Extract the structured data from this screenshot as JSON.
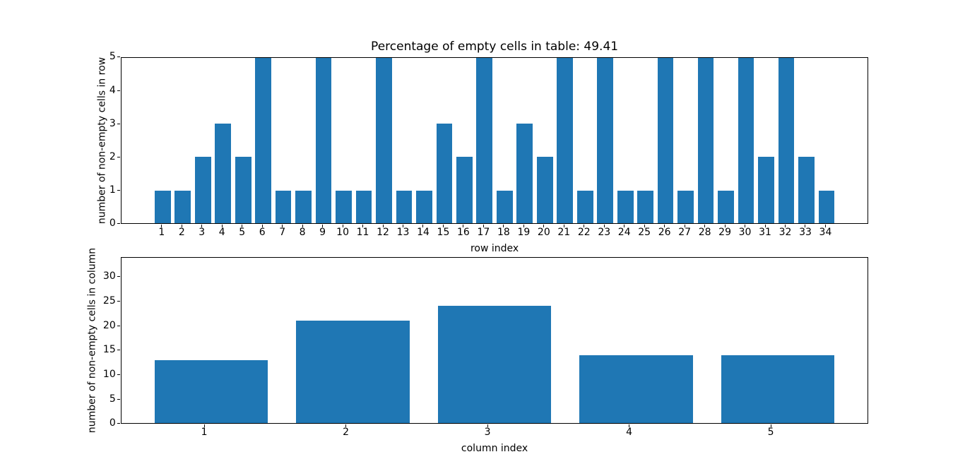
{
  "figure": {
    "background": "#ffffff",
    "spine_color": "#000000",
    "text_color": "#000000",
    "bar_color": "#1f77b4"
  },
  "chart_data": [
    {
      "name": "non-empty-cells-per-row",
      "type": "bar",
      "title": "Percentage of empty cells in table: 49.41",
      "xlabel": "row index",
      "ylabel": "number of non-empty cells in row",
      "categories": [
        1,
        2,
        3,
        4,
        5,
        6,
        7,
        8,
        9,
        10,
        11,
        12,
        13,
        14,
        15,
        16,
        17,
        18,
        19,
        20,
        21,
        22,
        23,
        24,
        25,
        26,
        27,
        28,
        29,
        30,
        31,
        32,
        33,
        34
      ],
      "values": [
        1,
        1,
        2,
        3,
        2,
        5,
        1,
        1,
        5,
        1,
        1,
        5,
        1,
        1,
        3,
        2,
        5,
        1,
        3,
        2,
        5,
        1,
        5,
        1,
        1,
        5,
        1,
        5,
        1,
        5,
        2,
        5,
        2,
        1
      ],
      "ylim": [
        0,
        5
      ],
      "yticks": [
        0,
        1,
        2,
        3,
        4,
        5
      ],
      "bar_width": 0.8,
      "bar_x_offset": 0.05,
      "x_margin": 0.05,
      "grid": false,
      "bar_color": "#1f77b4"
    },
    {
      "name": "non-empty-cells-per-column",
      "type": "bar",
      "title": "",
      "xlabel": "column index",
      "ylabel": "number of non-empty cells in column",
      "categories": [
        1,
        2,
        3,
        4,
        5
      ],
      "values": [
        13,
        21,
        24,
        14,
        14
      ],
      "ylim": [
        0,
        34
      ],
      "yticks": [
        0,
        5,
        10,
        15,
        20,
        25,
        30
      ],
      "bar_width": 0.8,
      "bar_x_offset": 0.05,
      "x_margin": 0.05,
      "grid": false,
      "bar_color": "#1f77b4"
    }
  ]
}
